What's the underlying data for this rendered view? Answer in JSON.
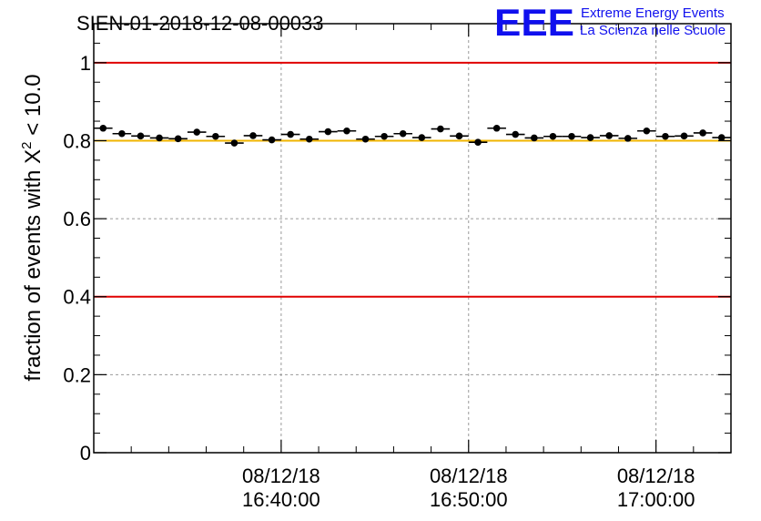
{
  "header": {
    "run_title": "SIEN-01-2018-12-08-00033",
    "logo_text": "EEE",
    "tagline_line1": "Extreme Energy Events",
    "tagline_line2": "La Scienza nelle Scuole",
    "logo_color": "#1010ee"
  },
  "chart_data": {
    "type": "scatter",
    "title": "SIEN-01-2018-12-08-00033",
    "ylabel_prefix": "fraction of events with ",
    "ylabel_symbol": "X",
    "ylabel_superscript": "2",
    "ylabel_suffix": " < 10.0",
    "xlabel": "",
    "ylim": [
      0,
      1.1
    ],
    "xlim_minutes": [
      0,
      34
    ],
    "y_ticks": [
      "0",
      "0.2",
      "0.4",
      "0.6",
      "0.8",
      "1"
    ],
    "y_tick_values": [
      0,
      0.2,
      0.4,
      0.6,
      0.8,
      1.0
    ],
    "x_ticks": [
      {
        "minute": 10,
        "date": "08/12/18",
        "time": "16:40:00"
      },
      {
        "minute": 20,
        "date": "08/12/18",
        "time": "16:50:00"
      },
      {
        "minute": 30,
        "date": "08/12/18",
        "time": "17:00:00"
      }
    ],
    "x_minor_step_minutes": 2,
    "reference_lines": [
      {
        "y": 1.0,
        "color": "#e00000"
      },
      {
        "y": 0.4,
        "color": "#e00000"
      },
      {
        "y": 0.8,
        "color": "#f0b400"
      }
    ],
    "series": [
      {
        "name": "fraction",
        "bin_width_minutes": 1,
        "x": [
          0.5,
          1.5,
          2.5,
          3.5,
          4.5,
          5.5,
          6.5,
          7.5,
          8.5,
          9.5,
          10.5,
          11.5,
          12.5,
          13.5,
          14.5,
          15.5,
          16.5,
          17.5,
          18.5,
          19.5,
          20.5,
          21.5,
          22.5,
          23.5,
          24.5,
          25.5,
          26.5,
          27.5,
          28.5,
          29.5,
          30.5,
          31.5,
          32.5,
          33.5
        ],
        "values": [
          0.832,
          0.818,
          0.812,
          0.807,
          0.805,
          0.822,
          0.811,
          0.794,
          0.813,
          0.802,
          0.816,
          0.804,
          0.823,
          0.825,
          0.804,
          0.811,
          0.818,
          0.808,
          0.83,
          0.812,
          0.796,
          0.832,
          0.816,
          0.807,
          0.811,
          0.811,
          0.808,
          0.813,
          0.806,
          0.825,
          0.811,
          0.812,
          0.82,
          0.808
        ],
        "errors": [
          0.007,
          0.007,
          0.007,
          0.007,
          0.007,
          0.007,
          0.007,
          0.007,
          0.007,
          0.007,
          0.007,
          0.007,
          0.007,
          0.007,
          0.007,
          0.007,
          0.007,
          0.007,
          0.007,
          0.007,
          0.007,
          0.007,
          0.007,
          0.007,
          0.007,
          0.007,
          0.007,
          0.007,
          0.007,
          0.007,
          0.007,
          0.007,
          0.007,
          0.007
        ]
      }
    ],
    "grid": true
  }
}
